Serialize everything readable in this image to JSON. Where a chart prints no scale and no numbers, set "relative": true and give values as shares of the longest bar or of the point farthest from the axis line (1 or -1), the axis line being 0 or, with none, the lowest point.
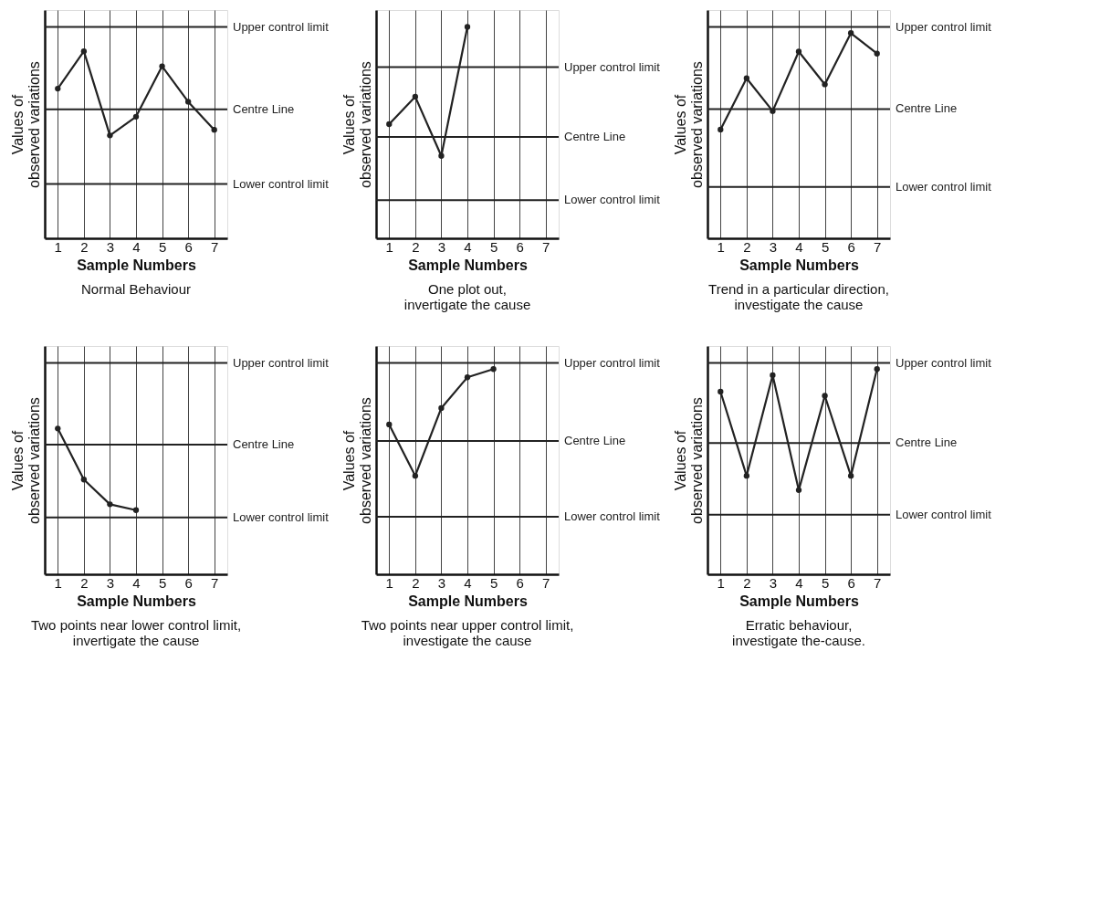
{
  "chart_data": [
    {
      "type": "line",
      "title": "Normal Behaviour",
      "xlabel": "Sample Numbers",
      "ylabel": "Values of observed variations",
      "categories": [
        "1",
        "2",
        "3",
        "4",
        "5",
        "6",
        "7"
      ],
      "relative": true,
      "grid": "x",
      "marker": "circle",
      "line_style": "solid",
      "tick_labels": "x",
      "series": [
        {
          "color": "#222222",
          "values": [
            0.8,
            1.0,
            0.55,
            0.65,
            0.92,
            0.73,
            0.58
          ]
        }
      ],
      "ref_lines": [
        {
          "axis": "y",
          "value": 1.13,
          "label": "Upper control limit",
          "color": "#222222"
        },
        {
          "axis": "y",
          "value": 0.69,
          "label": "Centre Line",
          "color": "#222222"
        },
        {
          "axis": "y",
          "value": 0.29,
          "label": "Lower control limit",
          "color": "#222222"
        }
      ]
    },
    {
      "type": "line",
      "title": "One plot out, invertigate the cause",
      "xlabel": "Sample Numbers",
      "ylabel": "Values of observed variations",
      "categories": [
        "1",
        "2",
        "3",
        "4",
        "5",
        "6",
        "7"
      ],
      "relative": true,
      "grid": "x",
      "marker": "circle",
      "line_style": "solid",
      "tick_labels": "x",
      "series": [
        {
          "color": "#222222",
          "values": [
            0.54,
            0.67,
            0.39,
            1.0,
            null,
            null,
            null
          ]
        }
      ],
      "ref_lines": [
        {
          "axis": "y",
          "value": 0.81,
          "label": "Upper control limit",
          "color": "#222222"
        },
        {
          "axis": "y",
          "value": 0.48,
          "label": "Centre Line",
          "color": "#222222"
        },
        {
          "axis": "y",
          "value": 0.18,
          "label": "Lower control limit",
          "color": "#222222"
        }
      ]
    },
    {
      "type": "line",
      "title": "Trend in a particular direction, investigate the cause",
      "xlabel": "Sample Numbers",
      "ylabel": "Values of observed variations",
      "categories": [
        "1",
        "2",
        "3",
        "4",
        "5",
        "6",
        "7"
      ],
      "relative": true,
      "grid": "x",
      "marker": "circle",
      "line_style": "solid",
      "tick_labels": "x",
      "series": [
        {
          "color": "#222222",
          "values": [
            0.53,
            0.78,
            0.62,
            0.91,
            0.75,
            1.0,
            0.9
          ]
        }
      ],
      "ref_lines": [
        {
          "axis": "y",
          "value": 1.03,
          "label": "Upper control limit",
          "color": "#222222"
        },
        {
          "axis": "y",
          "value": 0.63,
          "label": "Centre Line",
          "color": "#222222"
        },
        {
          "axis": "y",
          "value": 0.25,
          "label": "Lower control limit",
          "color": "#222222"
        }
      ]
    },
    {
      "type": "line",
      "title": "Two points near lower control limit, invertigate the cause",
      "xlabel": "Sample Numbers",
      "ylabel": "Values of observed variations",
      "categories": [
        "1",
        "2",
        "3",
        "4",
        "5",
        "6",
        "7"
      ],
      "relative": true,
      "grid": "x",
      "marker": "circle",
      "line_style": "solid",
      "tick_labels": "x",
      "series": [
        {
          "color": "#222222",
          "values": [
            1.0,
            0.65,
            0.48,
            0.44,
            null,
            null,
            null
          ]
        }
      ],
      "ref_lines": [
        {
          "axis": "y",
          "value": 1.45,
          "label": "Upper control limit",
          "color": "#222222"
        },
        {
          "axis": "y",
          "value": 0.89,
          "label": "Centre Line",
          "color": "#222222"
        },
        {
          "axis": "y",
          "value": 0.39,
          "label": "Lower control limit",
          "color": "#222222"
        }
      ]
    },
    {
      "type": "line",
      "title": "Two points near upper control limit, investigate the cause",
      "xlabel": "Sample Numbers",
      "ylabel": "Values of observed variations",
      "categories": [
        "1",
        "2",
        "3",
        "4",
        "5",
        "6",
        "7"
      ],
      "relative": true,
      "grid": "x",
      "marker": "circle",
      "line_style": "solid",
      "tick_labels": "x",
      "series": [
        {
          "color": "#222222",
          "values": [
            0.73,
            0.48,
            0.81,
            0.96,
            1.0,
            null,
            null
          ]
        }
      ],
      "ref_lines": [
        {
          "axis": "y",
          "value": 1.03,
          "label": "Upper control limit",
          "color": "#222222"
        },
        {
          "axis": "y",
          "value": 0.65,
          "label": "Centre Line",
          "color": "#222222"
        },
        {
          "axis": "y",
          "value": 0.28,
          "label": "Lower control limit",
          "color": "#222222"
        }
      ]
    },
    {
      "type": "line",
      "title": "Erratic behaviour, investigate the-cause.",
      "xlabel": "Sample Numbers",
      "ylabel": "Values of observed variations",
      "categories": [
        "1",
        "2",
        "3",
        "4",
        "5",
        "6",
        "7"
      ],
      "relative": true,
      "grid": "x",
      "marker": "circle",
      "line_style": "solid",
      "tick_labels": "x",
      "series": [
        {
          "color": "#222222",
          "values": [
            0.89,
            0.48,
            0.97,
            0.41,
            0.87,
            0.48,
            1.0
          ]
        }
      ],
      "ref_lines": [
        {
          "axis": "y",
          "value": 1.03,
          "label": "Upper control limit",
          "color": "#222222"
        },
        {
          "axis": "y",
          "value": 0.64,
          "label": "Centre Line",
          "color": "#222222"
        },
        {
          "axis": "y",
          "value": 0.29,
          "label": "Lower control limit",
          "color": "#222222"
        }
      ]
    }
  ]
}
